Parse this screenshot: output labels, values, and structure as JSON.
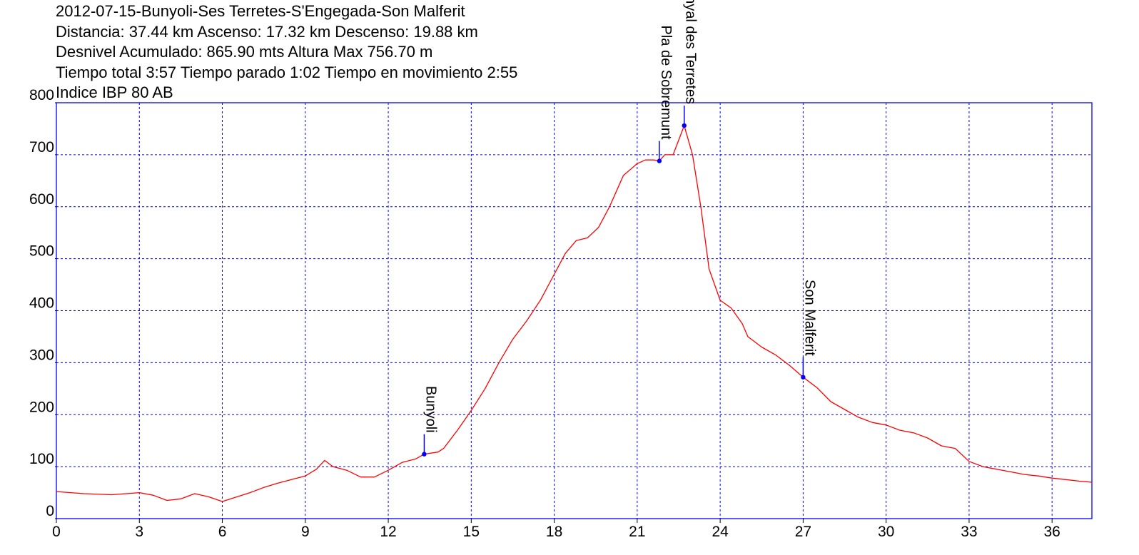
{
  "header": {
    "lines": [
      "2012-07-15-Bunyoli-Ses Terretes-S'Engegada-Son Malferit",
      "Distancia: 37.44 km Ascenso: 17.32 km Descenso: 19.88 km",
      "Desnivel Acumulado: 865.90 mts  Altura Max 756.70 m",
      "Tiempo total 3:57 Tiempo parado 1:02 Tiempo en movimiento 2:55",
      "Indice IBP 80 AB"
    ]
  },
  "colors": {
    "profile": "#ff0000",
    "frame": "#0000ff",
    "grid": "#0000ff",
    "waypoint": "#0000ff",
    "text": "#000000"
  },
  "chart_data": {
    "type": "line",
    "title": "2012-07-15-Bunyoli-Ses Terretes-S'Engegada-Son Malferit",
    "xlabel": "",
    "ylabel": "",
    "xlim": [
      0,
      37.44
    ],
    "ylim": [
      0,
      800
    ],
    "grid": true,
    "x_ticks": [
      0,
      3,
      6,
      9,
      12,
      15,
      18,
      21,
      24,
      27,
      30,
      33,
      36
    ],
    "y_ticks": [
      0,
      100,
      200,
      300,
      400,
      500,
      600,
      700,
      800
    ],
    "series": [
      {
        "x": [
          0,
          1,
          2,
          3,
          3.5,
          4,
          4.5,
          5,
          5.5,
          6,
          7,
          7.5,
          8,
          8.5,
          9,
          9.4,
          9.7,
          10,
          10.5,
          11,
          11.5,
          12,
          12.5,
          13,
          13.3,
          13.8,
          14,
          14.5,
          15,
          15.5,
          16,
          16.5,
          17,
          17.5,
          18,
          18.4,
          18.8,
          19.2,
          19.6,
          20,
          20.5,
          21,
          21.3,
          21.6,
          21.8,
          22,
          22.3,
          22.7,
          23,
          23.3,
          23.6,
          24,
          24.4,
          24.8,
          25,
          25.5,
          26,
          26.5,
          27,
          27.5,
          28,
          28.5,
          29,
          29.5,
          30,
          30.5,
          31,
          31.5,
          32,
          32.5,
          33,
          33.5,
          34,
          34.5,
          35,
          35.5,
          36,
          36.5,
          37,
          37.44
        ],
        "y": [
          52,
          48,
          46,
          50,
          45,
          35,
          38,
          48,
          42,
          33,
          50,
          60,
          68,
          75,
          82,
          95,
          112,
          100,
          93,
          80,
          80,
          93,
          108,
          115,
          124,
          128,
          135,
          170,
          208,
          250,
          300,
          345,
          380,
          420,
          470,
          510,
          535,
          540,
          560,
          600,
          660,
          683,
          690,
          690,
          688,
          700,
          700,
          756,
          700,
          600,
          480,
          420,
          405,
          375,
          350,
          330,
          315,
          295,
          272,
          252,
          225,
          210,
          195,
          185,
          180,
          170,
          165,
          155,
          140,
          135,
          110,
          100,
          95,
          90,
          85,
          82,
          78,
          75,
          72,
          70
        ]
      }
    ],
    "waypoints": [
      {
        "name": "Bunyoli",
        "x": 13.3,
        "y": 124
      },
      {
        "name": "Pla de Sobremunt",
        "x": 21.8,
        "y": 688
      },
      {
        "name": "Penyal des Terretes",
        "x": 22.7,
        "y": 756
      },
      {
        "name": "Son Malferit",
        "x": 27.0,
        "y": 272
      }
    ]
  }
}
